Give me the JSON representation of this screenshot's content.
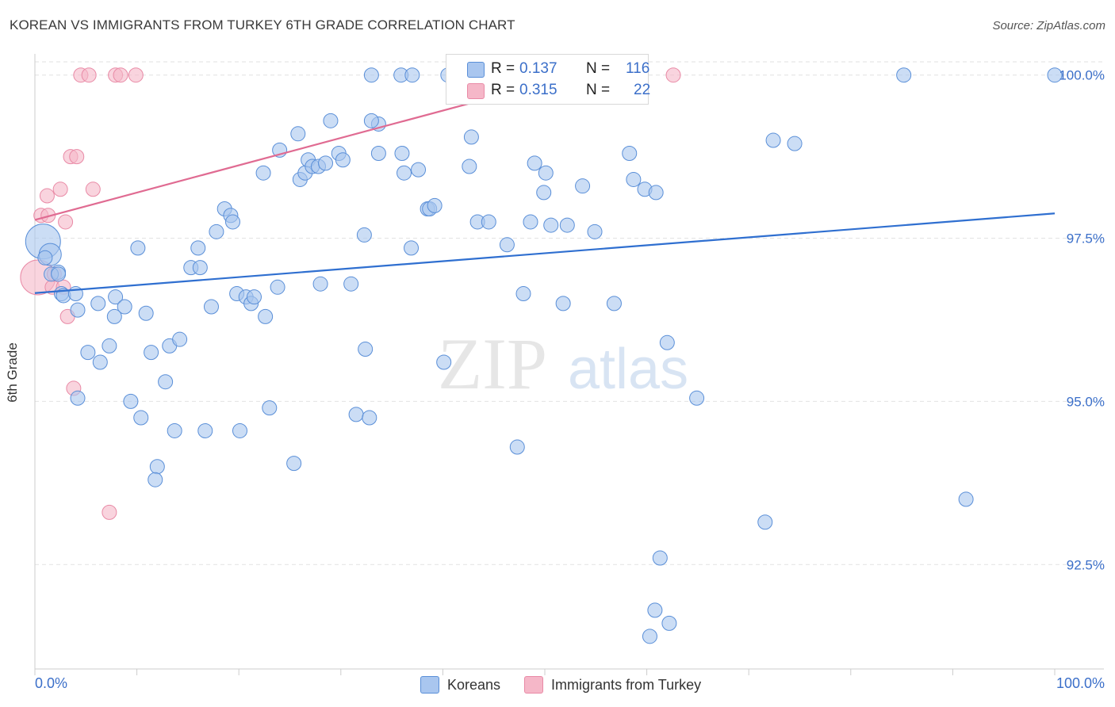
{
  "title": "KOREAN VS IMMIGRANTS FROM TURKEY 6TH GRADE CORRELATION CHART",
  "source": "Source: ZipAtlas.com",
  "watermark": {
    "zip": "ZIP",
    "atlas": "atlas"
  },
  "legend_top": {
    "rows": [
      {
        "r_label": "R =",
        "r_value": "0.137",
        "n_label": "N =",
        "n_value": "116",
        "color": "#a9c6ef"
      },
      {
        "r_label": "R =",
        "r_value": "0.315",
        "n_label": "N =",
        "n_value": "22",
        "color": "#f5b7c8"
      }
    ]
  },
  "legend_bottom": [
    {
      "label": "Koreans",
      "color": "#a9c6ef"
    },
    {
      "label": "Immigrants from Turkey",
      "color": "#f5b7c8"
    }
  ],
  "chart_data": {
    "type": "scatter",
    "title": "KOREAN VS IMMIGRANTS FROM TURKEY 6TH GRADE CORRELATION CHART",
    "xlabel": "",
    "ylabel": "6th Grade",
    "x_tick_labels": [
      "0.0%",
      "100.0%"
    ],
    "y_tick_labels": [
      "92.5%",
      "95.0%",
      "97.5%",
      "100.0%"
    ],
    "y_ticks": [
      92.5,
      95.0,
      97.5,
      100.0
    ],
    "xlim": [
      0,
      100
    ],
    "ylim": [
      90.9,
      100.3
    ],
    "grid": true,
    "legend_placement": "top-center",
    "colors": {
      "koreans_fill": "#a9c6ef",
      "koreans_stroke": "#5a8fd8",
      "koreans_line": "#2f6fd0",
      "turkey_fill": "#f5b7c8",
      "turkey_stroke": "#e98aa6",
      "turkey_line": "#e06b92"
    },
    "series": [
      {
        "name": "Koreans",
        "trend": {
          "x": [
            0,
            100
          ],
          "y": [
            96.66,
            97.88
          ]
        },
        "points": [
          [
            0.8,
            97.45
          ],
          [
            1.5,
            97.25
          ],
          [
            1.0,
            97.2
          ],
          [
            2.3,
            96.98
          ],
          [
            2.6,
            96.65
          ],
          [
            2.8,
            96.62
          ],
          [
            4.0,
            96.65
          ],
          [
            1.6,
            96.95
          ],
          [
            4.2,
            96.4
          ],
          [
            7.9,
            96.6
          ],
          [
            8.8,
            96.45
          ],
          [
            6.2,
            96.5
          ],
          [
            7.8,
            96.3
          ],
          [
            10.9,
            96.35
          ],
          [
            10.1,
            97.35
          ],
          [
            2.3,
            96.95
          ],
          [
            5.2,
            95.75
          ],
          [
            6.4,
            95.6
          ],
          [
            7.3,
            95.85
          ],
          [
            11.4,
            95.75
          ],
          [
            13.2,
            95.85
          ],
          [
            14.2,
            95.95
          ],
          [
            12.8,
            95.3
          ],
          [
            9.4,
            95.0
          ],
          [
            10.4,
            94.75
          ],
          [
            4.2,
            95.05
          ],
          [
            13.7,
            94.55
          ],
          [
            16.7,
            94.55
          ],
          [
            20.1,
            94.55
          ],
          [
            12.0,
            94.0
          ],
          [
            11.8,
            93.8
          ],
          [
            23.0,
            94.9
          ],
          [
            25.4,
            94.05
          ],
          [
            15.3,
            97.05
          ],
          [
            16.2,
            97.05
          ],
          [
            16.0,
            97.35
          ],
          [
            17.3,
            96.45
          ],
          [
            17.8,
            97.6
          ],
          [
            18.6,
            97.95
          ],
          [
            19.2,
            97.85
          ],
          [
            19.4,
            97.75
          ],
          [
            19.8,
            96.65
          ],
          [
            20.7,
            96.6
          ],
          [
            21.2,
            96.5
          ],
          [
            21.5,
            96.6
          ],
          [
            22.6,
            96.3
          ],
          [
            23.8,
            96.75
          ],
          [
            24.0,
            98.85
          ],
          [
            25.8,
            99.1
          ],
          [
            22.4,
            98.5
          ],
          [
            26.0,
            98.4
          ],
          [
            26.5,
            98.5
          ],
          [
            26.8,
            98.7
          ],
          [
            27.2,
            98.6
          ],
          [
            27.8,
            98.6
          ],
          [
            28.5,
            98.65
          ],
          [
            29.8,
            98.8
          ],
          [
            29.0,
            99.3
          ],
          [
            30.2,
            98.7
          ],
          [
            31.0,
            96.8
          ],
          [
            28.0,
            96.8
          ],
          [
            32.4,
            95.8
          ],
          [
            31.5,
            94.8
          ],
          [
            32.8,
            94.75
          ],
          [
            32.3,
            97.55
          ],
          [
            33.7,
            98.8
          ],
          [
            33.7,
            99.25
          ],
          [
            33.0,
            100.0
          ],
          [
            35.9,
            100.0
          ],
          [
            36.0,
            98.8
          ],
          [
            36.2,
            98.5
          ],
          [
            36.9,
            97.35
          ],
          [
            37.6,
            98.55
          ],
          [
            38.5,
            97.95
          ],
          [
            38.7,
            97.95
          ],
          [
            39.2,
            98.0
          ],
          [
            40.1,
            95.6
          ],
          [
            40.5,
            100.0
          ],
          [
            42.6,
            98.6
          ],
          [
            42.8,
            99.05
          ],
          [
            43.4,
            97.75
          ],
          [
            43.4,
            100.0
          ],
          [
            44.5,
            97.75
          ],
          [
            45.2,
            100.0
          ],
          [
            46.3,
            97.4
          ],
          [
            47.3,
            94.3
          ],
          [
            47.9,
            96.65
          ],
          [
            48.6,
            97.75
          ],
          [
            49.0,
            98.65
          ],
          [
            49.9,
            98.2
          ],
          [
            50.1,
            98.5
          ],
          [
            50.6,
            97.7
          ],
          [
            51.8,
            96.5
          ],
          [
            52.2,
            97.7
          ],
          [
            53.7,
            98.3
          ],
          [
            54.9,
            100.0
          ],
          [
            54.9,
            97.6
          ],
          [
            56.8,
            96.5
          ],
          [
            58.3,
            98.8
          ],
          [
            58.7,
            98.4
          ],
          [
            59.8,
            98.25
          ],
          [
            60.9,
            98.2
          ],
          [
            61.3,
            92.6
          ],
          [
            62.0,
            95.9
          ],
          [
            64.9,
            95.05
          ],
          [
            60.8,
            91.8
          ],
          [
            60.3,
            91.4
          ],
          [
            62.2,
            91.6
          ],
          [
            72.4,
            99.0
          ],
          [
            74.5,
            98.95
          ],
          [
            71.6,
            93.15
          ],
          [
            85.2,
            100.0
          ],
          [
            91.3,
            93.5
          ],
          [
            100.0,
            100.0
          ],
          [
            37.0,
            100.0
          ],
          [
            33.0,
            99.3
          ]
        ],
        "sizes": [
          [
            0,
            22
          ],
          [
            1,
            14
          ]
        ]
      },
      {
        "name": "Immigrants from Turkey",
        "trend": {
          "x": [
            0,
            53
          ],
          "y": [
            97.78,
            100.0
          ]
        },
        "points": [
          [
            0.3,
            96.9
          ],
          [
            0.6,
            97.85
          ],
          [
            1.3,
            97.85
          ],
          [
            1.2,
            98.15
          ],
          [
            2.5,
            98.25
          ],
          [
            3.0,
            97.75
          ],
          [
            3.5,
            98.75
          ],
          [
            4.1,
            98.75
          ],
          [
            5.7,
            98.25
          ],
          [
            1.7,
            96.75
          ],
          [
            2.8,
            96.75
          ],
          [
            3.2,
            96.3
          ],
          [
            3.8,
            95.2
          ],
          [
            7.3,
            93.3
          ],
          [
            4.5,
            100.0
          ],
          [
            5.3,
            100.0
          ],
          [
            7.9,
            100.0
          ],
          [
            8.4,
            100.0
          ],
          [
            9.9,
            100.0
          ],
          [
            41.5,
            100.0
          ],
          [
            62.6,
            100.0
          ],
          [
            1.9,
            96.95
          ]
        ],
        "sizes": [
          [
            0,
            22
          ]
        ]
      }
    ]
  }
}
